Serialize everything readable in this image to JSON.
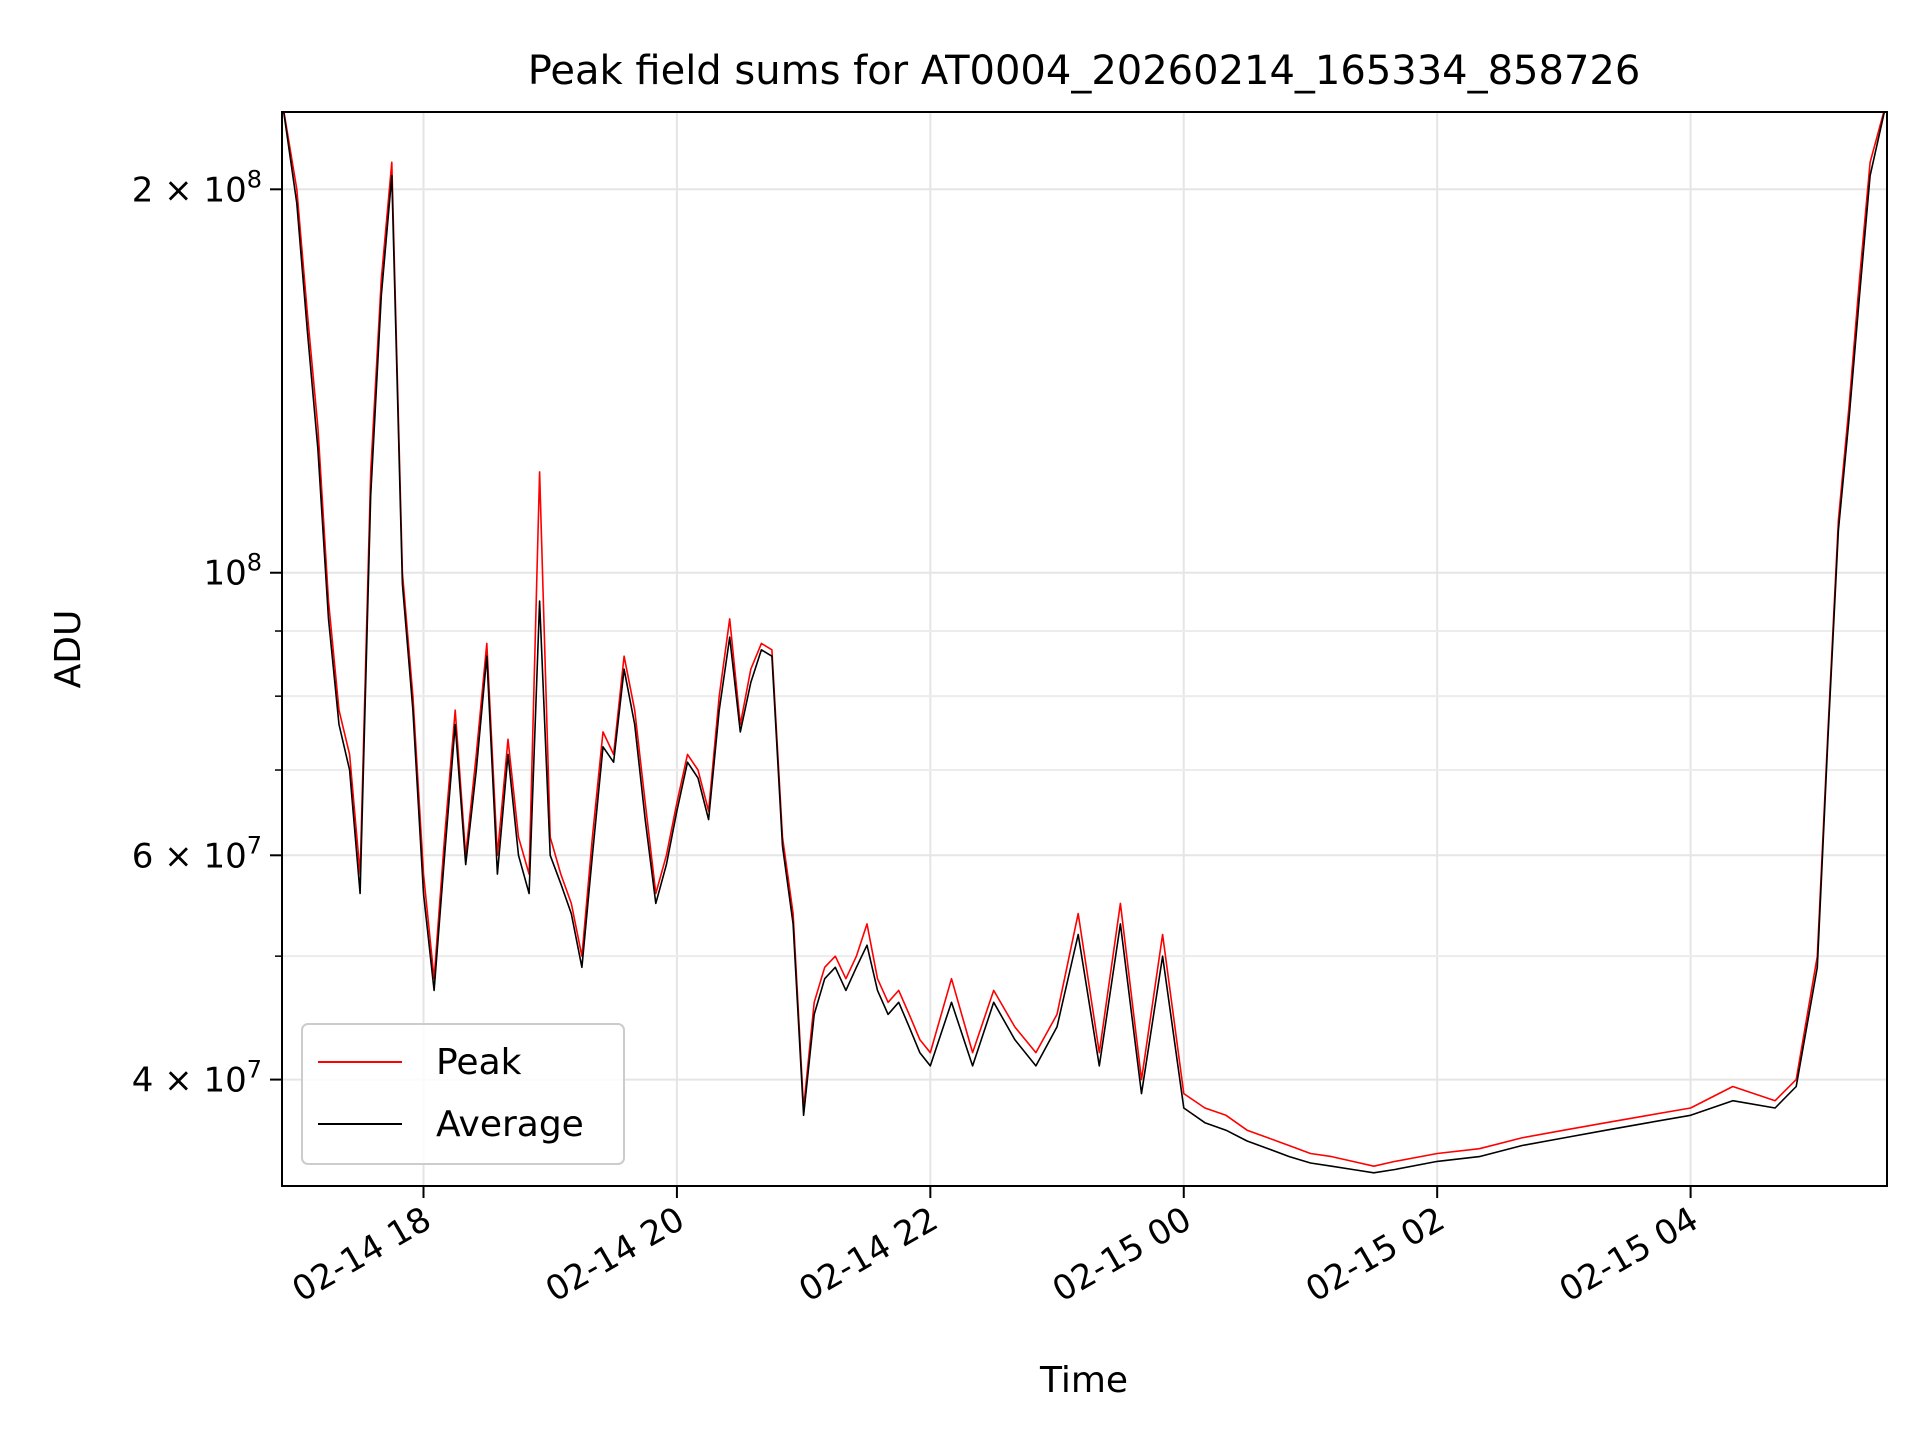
{
  "chart_data": {
    "type": "line",
    "title": "Peak field sums for AT0004_20260214_165334_858726",
    "xlabel": "Time",
    "ylabel": "ADU",
    "y_scale": "log",
    "ylim": [
      33000000,
      230000000
    ],
    "xlim": [
      "2026-02-14 16:53",
      "2026-02-15 05:33"
    ],
    "grid": true,
    "legend_position": "lower-left",
    "x_ticks": [
      {
        "value": "2026-02-14 18:00",
        "label": "02-14 18"
      },
      {
        "value": "2026-02-14 20:00",
        "label": "02-14 20"
      },
      {
        "value": "2026-02-14 22:00",
        "label": "02-14 22"
      },
      {
        "value": "2026-02-15 00:00",
        "label": "02-15 00"
      },
      {
        "value": "2026-02-15 02:00",
        "label": "02-15 02"
      },
      {
        "value": "2026-02-15 04:00",
        "label": "02-15 04"
      }
    ],
    "y_major_ticks": [
      {
        "value": 40000000,
        "base": "4 × 10",
        "exp": "7"
      },
      {
        "value": 60000000,
        "base": "6 × 10",
        "exp": "7"
      },
      {
        "value": 100000000,
        "base": "10",
        "exp": "8"
      },
      {
        "value": 200000000,
        "base": "2 × 10",
        "exp": "8"
      }
    ],
    "y_minor_gridlines": [
      50000000,
      70000000,
      80000000,
      90000000
    ],
    "x": [
      "2026-02-14 16:53",
      "2026-02-14 17:00",
      "2026-02-14 17:05",
      "2026-02-14 17:10",
      "2026-02-14 17:15",
      "2026-02-14 17:20",
      "2026-02-14 17:25",
      "2026-02-14 17:30",
      "2026-02-14 17:35",
      "2026-02-14 17:40",
      "2026-02-14 17:45",
      "2026-02-14 17:50",
      "2026-02-14 17:55",
      "2026-02-14 18:00",
      "2026-02-14 18:05",
      "2026-02-14 18:10",
      "2026-02-14 18:15",
      "2026-02-14 18:20",
      "2026-02-14 18:25",
      "2026-02-14 18:30",
      "2026-02-14 18:35",
      "2026-02-14 18:40",
      "2026-02-14 18:45",
      "2026-02-14 18:50",
      "2026-02-14 18:55",
      "2026-02-14 19:00",
      "2026-02-14 19:05",
      "2026-02-14 19:10",
      "2026-02-14 19:15",
      "2026-02-14 19:20",
      "2026-02-14 19:25",
      "2026-02-14 19:30",
      "2026-02-14 19:35",
      "2026-02-14 19:40",
      "2026-02-14 19:45",
      "2026-02-14 19:50",
      "2026-02-14 19:55",
      "2026-02-14 20:00",
      "2026-02-14 20:05",
      "2026-02-14 20:10",
      "2026-02-14 20:15",
      "2026-02-14 20:20",
      "2026-02-14 20:25",
      "2026-02-14 20:30",
      "2026-02-14 20:35",
      "2026-02-14 20:40",
      "2026-02-14 20:45",
      "2026-02-14 20:50",
      "2026-02-14 20:55",
      "2026-02-14 21:00",
      "2026-02-14 21:05",
      "2026-02-14 21:10",
      "2026-02-14 21:15",
      "2026-02-14 21:20",
      "2026-02-14 21:25",
      "2026-02-14 21:30",
      "2026-02-14 21:35",
      "2026-02-14 21:40",
      "2026-02-14 21:45",
      "2026-02-14 21:50",
      "2026-02-14 21:55",
      "2026-02-14 22:00",
      "2026-02-14 22:10",
      "2026-02-14 22:20",
      "2026-02-14 22:30",
      "2026-02-14 22:40",
      "2026-02-14 22:50",
      "2026-02-14 23:00",
      "2026-02-14 23:10",
      "2026-02-14 23:20",
      "2026-02-14 23:30",
      "2026-02-14 23:40",
      "2026-02-14 23:50",
      "2026-02-15 00:00",
      "2026-02-15 00:10",
      "2026-02-15 00:20",
      "2026-02-15 00:30",
      "2026-02-15 00:40",
      "2026-02-15 00:50",
      "2026-02-15 01:00",
      "2026-02-15 01:10",
      "2026-02-15 01:20",
      "2026-02-15 01:30",
      "2026-02-15 01:40",
      "2026-02-15 02:00",
      "2026-02-15 02:20",
      "2026-02-15 02:40",
      "2026-02-15 03:00",
      "2026-02-15 03:20",
      "2026-02-15 03:40",
      "2026-02-15 04:00",
      "2026-02-15 04:20",
      "2026-02-15 04:40",
      "2026-02-15 04:50",
      "2026-02-15 05:00",
      "2026-02-15 05:05",
      "2026-02-15 05:10",
      "2026-02-15 05:15",
      "2026-02-15 05:20",
      "2026-02-15 05:25",
      "2026-02-15 05:33"
    ],
    "series": [
      {
        "name": "Peak",
        "color": "#ff0000",
        "values": [
          235000000,
          200000000,
          160000000,
          130000000,
          95000000,
          78000000,
          72000000,
          58000000,
          120000000,
          170000000,
          210000000,
          100000000,
          80000000,
          58000000,
          48000000,
          62000000,
          78000000,
          60000000,
          72000000,
          88000000,
          60000000,
          74000000,
          62000000,
          58000000,
          120000000,
          62000000,
          58000000,
          55000000,
          50000000,
          62000000,
          75000000,
          72000000,
          86000000,
          78000000,
          66000000,
          56000000,
          60000000,
          66000000,
          72000000,
          70000000,
          65000000,
          80000000,
          92000000,
          76000000,
          84000000,
          88000000,
          87000000,
          62000000,
          54000000,
          38000000,
          46000000,
          49000000,
          50000000,
          48000000,
          50000000,
          53000000,
          48000000,
          46000000,
          47000000,
          45000000,
          43000000,
          42000000,
          48000000,
          42000000,
          47000000,
          44000000,
          42000000,
          45000000,
          54000000,
          42000000,
          55000000,
          40000000,
          52000000,
          39000000,
          38000000,
          37500000,
          36500000,
          36000000,
          35500000,
          35000000,
          34800000,
          34500000,
          34200000,
          34500000,
          35000000,
          35300000,
          36000000,
          36500000,
          37000000,
          37500000,
          38000000,
          39500000,
          38500000,
          40000000,
          50000000,
          75000000,
          110000000,
          135000000,
          170000000,
          210000000,
          235000000
        ]
      },
      {
        "name": "Average",
        "color": "#000000",
        "values": [
          235000000,
          195000000,
          155000000,
          125000000,
          92000000,
          76000000,
          70000000,
          56000000,
          115000000,
          165000000,
          205000000,
          98000000,
          78000000,
          56000000,
          47000000,
          60000000,
          76000000,
          59000000,
          70000000,
          86000000,
          58000000,
          72000000,
          60000000,
          56000000,
          95000000,
          60000000,
          57000000,
          54000000,
          49000000,
          60000000,
          73000000,
          71000000,
          84000000,
          76000000,
          64000000,
          55000000,
          59000000,
          65000000,
          71000000,
          69000000,
          64000000,
          78000000,
          89000000,
          75000000,
          82000000,
          87000000,
          86000000,
          61000000,
          53000000,
          37500000,
          45000000,
          48000000,
          49000000,
          47000000,
          49000000,
          51000000,
          47000000,
          45000000,
          46000000,
          44000000,
          42000000,
          41000000,
          46000000,
          41000000,
          46000000,
          43000000,
          41000000,
          44000000,
          52000000,
          41000000,
          53000000,
          39000000,
          50000000,
          38000000,
          37000000,
          36500000,
          35800000,
          35300000,
          34800000,
          34400000,
          34200000,
          34000000,
          33800000,
          34000000,
          34500000,
          34800000,
          35500000,
          36000000,
          36500000,
          37000000,
          37500000,
          38500000,
          38000000,
          39500000,
          49000000,
          74000000,
          108000000,
          132000000,
          165000000,
          205000000,
          235000000
        ]
      }
    ]
  }
}
